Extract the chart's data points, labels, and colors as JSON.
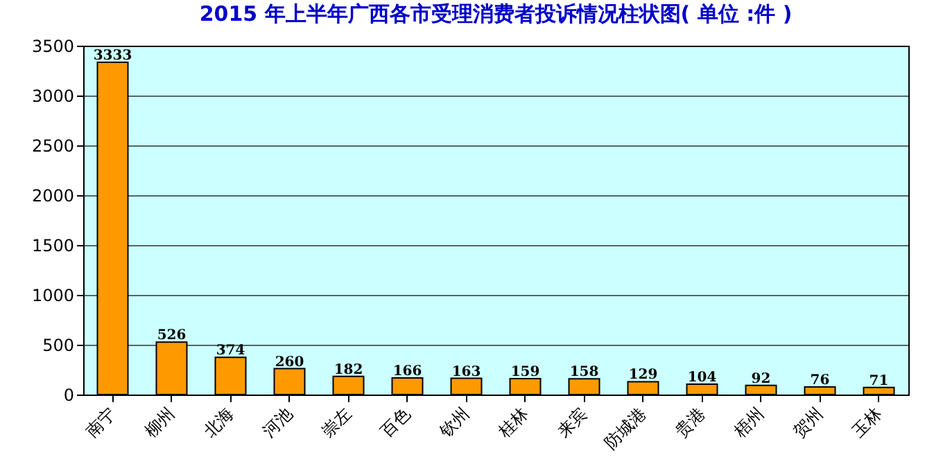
{
  "chart_data": {
    "type": "bar",
    "title": "2015 年上半年广西各市受理消费者投诉情况柱状图( 单位 :件 )",
    "categories": [
      "南宁",
      "柳州",
      "北海",
      "河池",
      "崇左",
      "百色",
      "钦州",
      "桂林",
      "来宾",
      "防城港",
      "贵港",
      "梧州",
      "贺州",
      "玉林"
    ],
    "values": [
      3333,
      526,
      374,
      260,
      182,
      166,
      163,
      159,
      158,
      129,
      104,
      92,
      76,
      71
    ],
    "color": "#ff9900",
    "ylim": [
      0,
      3500
    ],
    "yticks": [
      0,
      500,
      1000,
      1500,
      2000,
      2500,
      3000,
      3500
    ],
    "grid": "y",
    "data_labels": true
  }
}
